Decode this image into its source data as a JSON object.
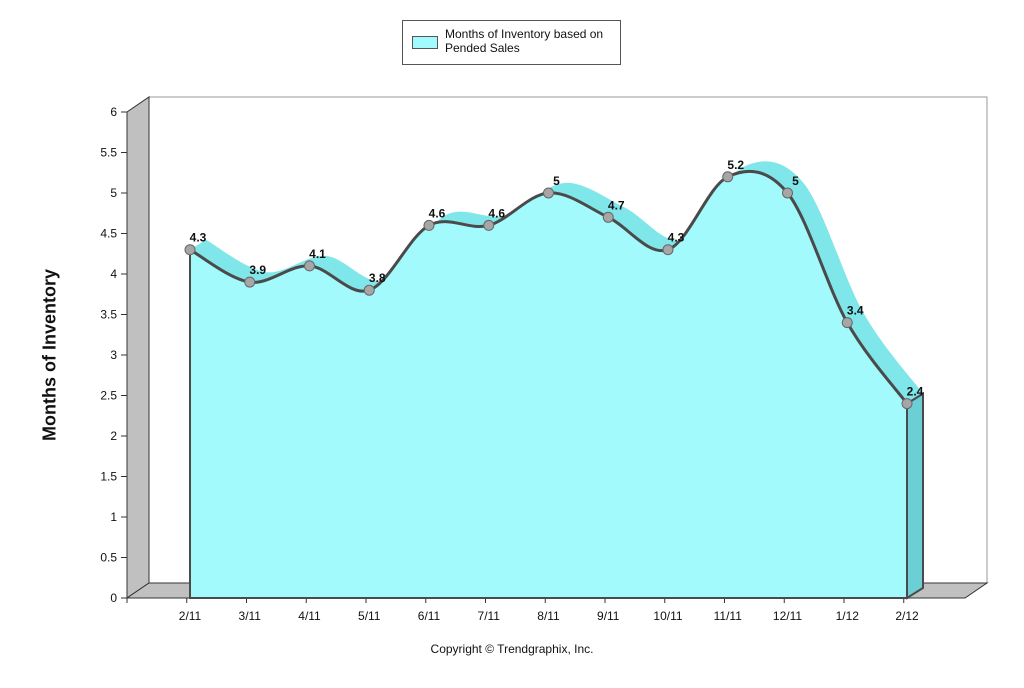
{
  "chart_data": {
    "type": "area",
    "categories": [
      "2/11",
      "3/11",
      "4/11",
      "5/11",
      "6/11",
      "7/11",
      "8/11",
      "9/11",
      "10/11",
      "11/11",
      "12/11",
      "1/12",
      "2/12"
    ],
    "series": [
      {
        "name": "Months of Inventory based on Pended Sales",
        "values": [
          4.3,
          3.9,
          4.1,
          3.8,
          4.6,
          4.6,
          5,
          4.7,
          4.3,
          5.2,
          5,
          3.4,
          2.4
        ],
        "data_labels": [
          "4.3",
          "3.9",
          "4.1",
          "3.8",
          "4.6",
          "4.6",
          "5",
          "4.7",
          "4.3",
          "5.2",
          "5",
          "3.4",
          "2.4"
        ]
      }
    ],
    "ylabel": "Months of Inventory",
    "ylim": [
      0,
      6
    ],
    "y_ticks": [
      "0",
      "0.5",
      "1",
      "1.5",
      "2",
      "2.5",
      "3",
      "3.5",
      "4",
      "4.5",
      "5",
      "5.5",
      "6"
    ],
    "legend_position": "top-center",
    "grid": false,
    "style": "3d"
  },
  "legend": {
    "label": "Months of Inventory based on Pended Sales"
  },
  "copyright": "Copyright © Trendgraphix, Inc.",
  "colors": {
    "area_fill": "#a3fafc",
    "area_top": "#7fe6ea",
    "area_side": "#6ccfd6",
    "line": "#4a4a4a",
    "marker": "#a6a6a6",
    "wall": "#c0c0c0"
  }
}
